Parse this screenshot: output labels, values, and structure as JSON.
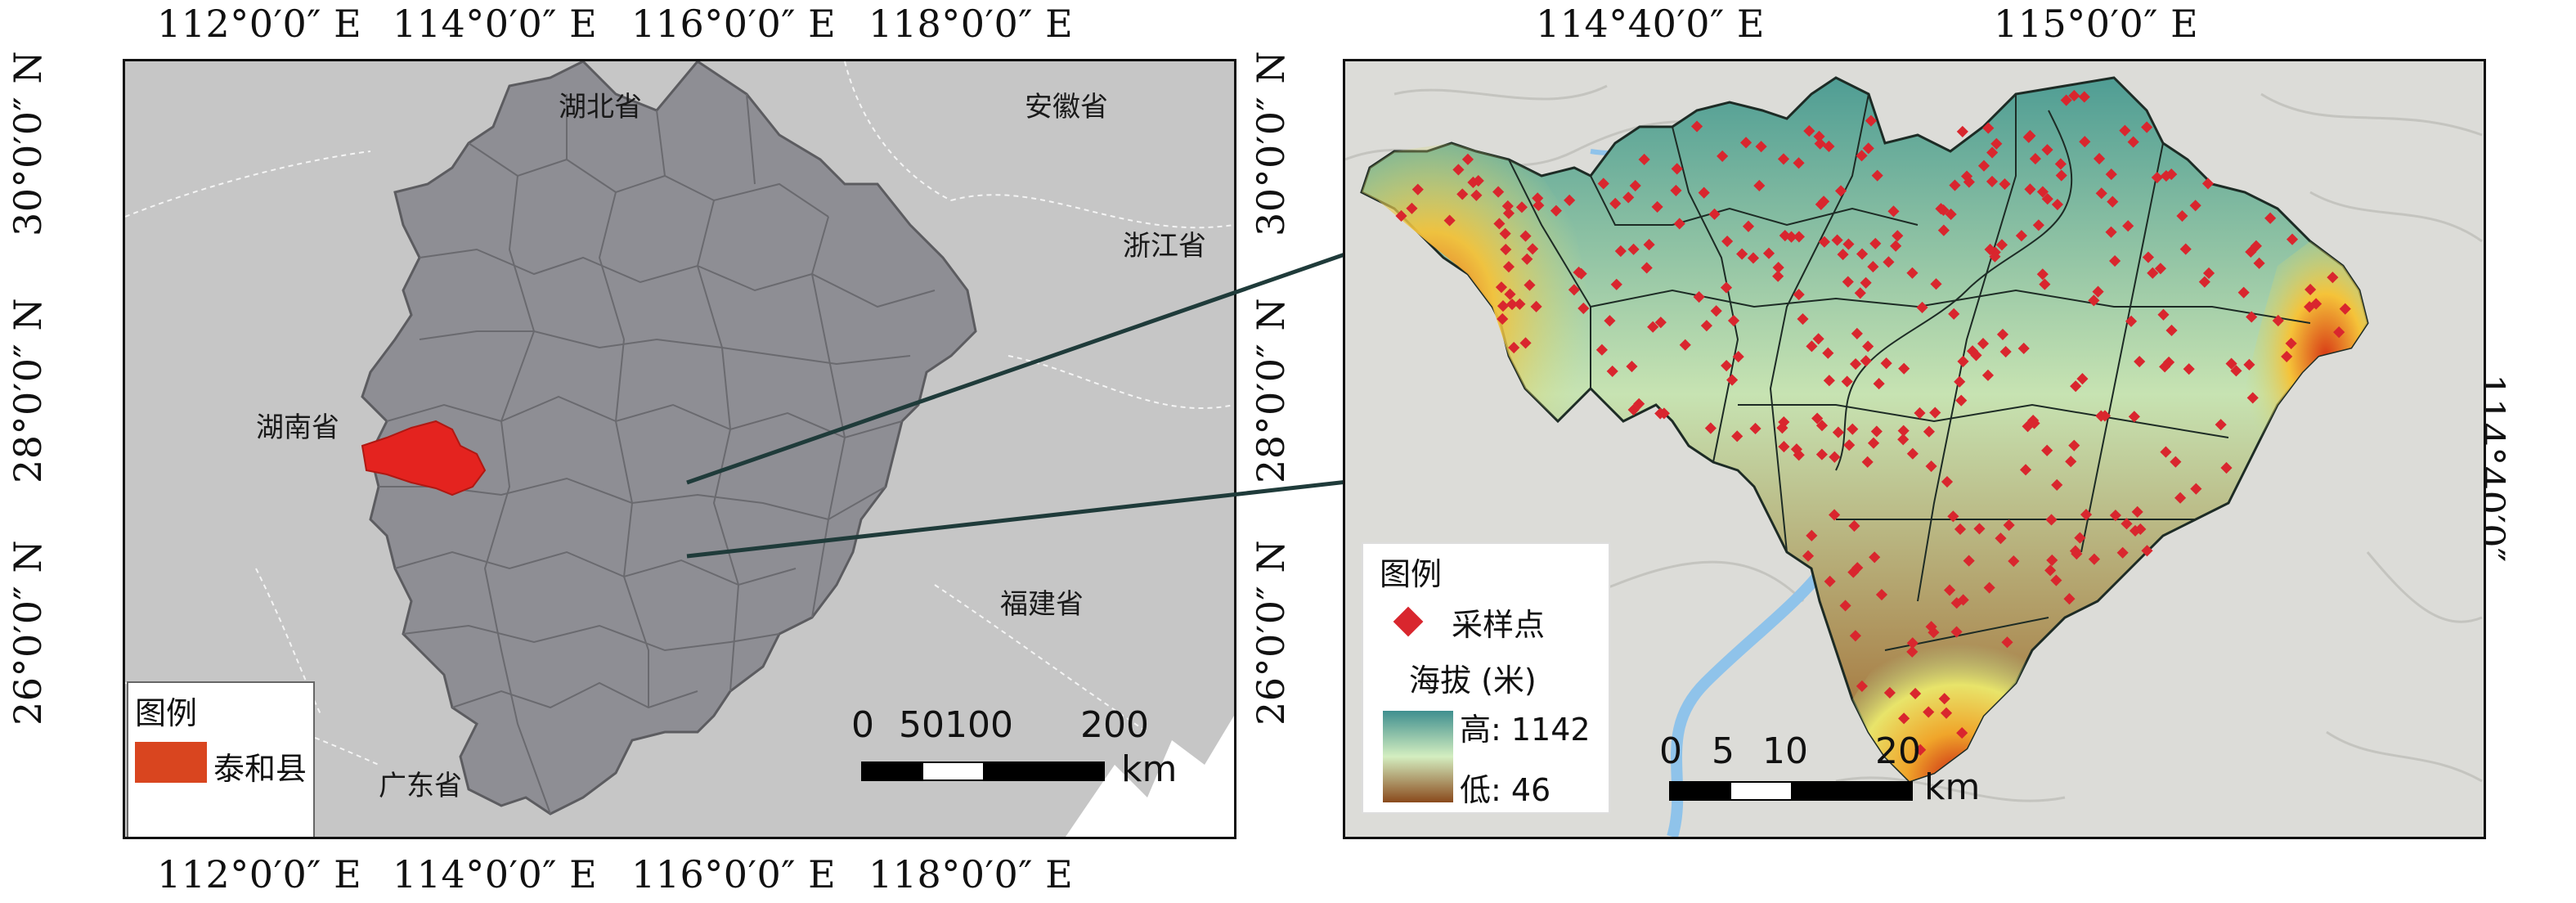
{
  "left_map": {
    "top_ticks": [
      "112°0′0″ E",
      "114°0′0″ E",
      "116°0′0″ E",
      "118°0′0″ E"
    ],
    "bottom_ticks": [
      "112°0′0″ E",
      "114°0′0″ E",
      "116°0′0″ E",
      "118°0′0″ E"
    ],
    "left_ticks": [
      "30°0′0″ N",
      "28°0′0″ N",
      "26°0′0″ N"
    ],
    "right_ticks": [
      "30°0′0″ N",
      "28°0′0″ N",
      "26°0′0″ N"
    ],
    "place_labels": {
      "hubei": "湖北省",
      "anhui": "安徽省",
      "zhejiang": "浙江省",
      "hunan": "湖南省",
      "fujian": "福建省",
      "guangdong": "广东省"
    },
    "legend": {
      "title": "图例",
      "item_label": "泰和县",
      "item_color": "#d9451f"
    },
    "scale_bar": {
      "labels": [
        "0",
        "50",
        "100",
        "200"
      ],
      "unit": "km"
    },
    "colors": {
      "background": "#c6c6c6",
      "province": "#8e8e94",
      "county_border": "#6a6a6f",
      "highlight": "#e4231f"
    }
  },
  "right_map": {
    "top_ticks": [
      "114°40′0″ E",
      "115°0′0″ E"
    ],
    "right_ticks": [
      "114°40′0″"
    ],
    "legend": {
      "title": "图例",
      "sample_label": "采样点",
      "elevation_title": "海拔 (米)",
      "high_label": "高: 1142",
      "low_label": "低: 46",
      "sample_color": "#d9262e"
    },
    "scale_bar": {
      "labels": [
        "0",
        "5",
        "10",
        "20"
      ],
      "unit": "km"
    }
  }
}
